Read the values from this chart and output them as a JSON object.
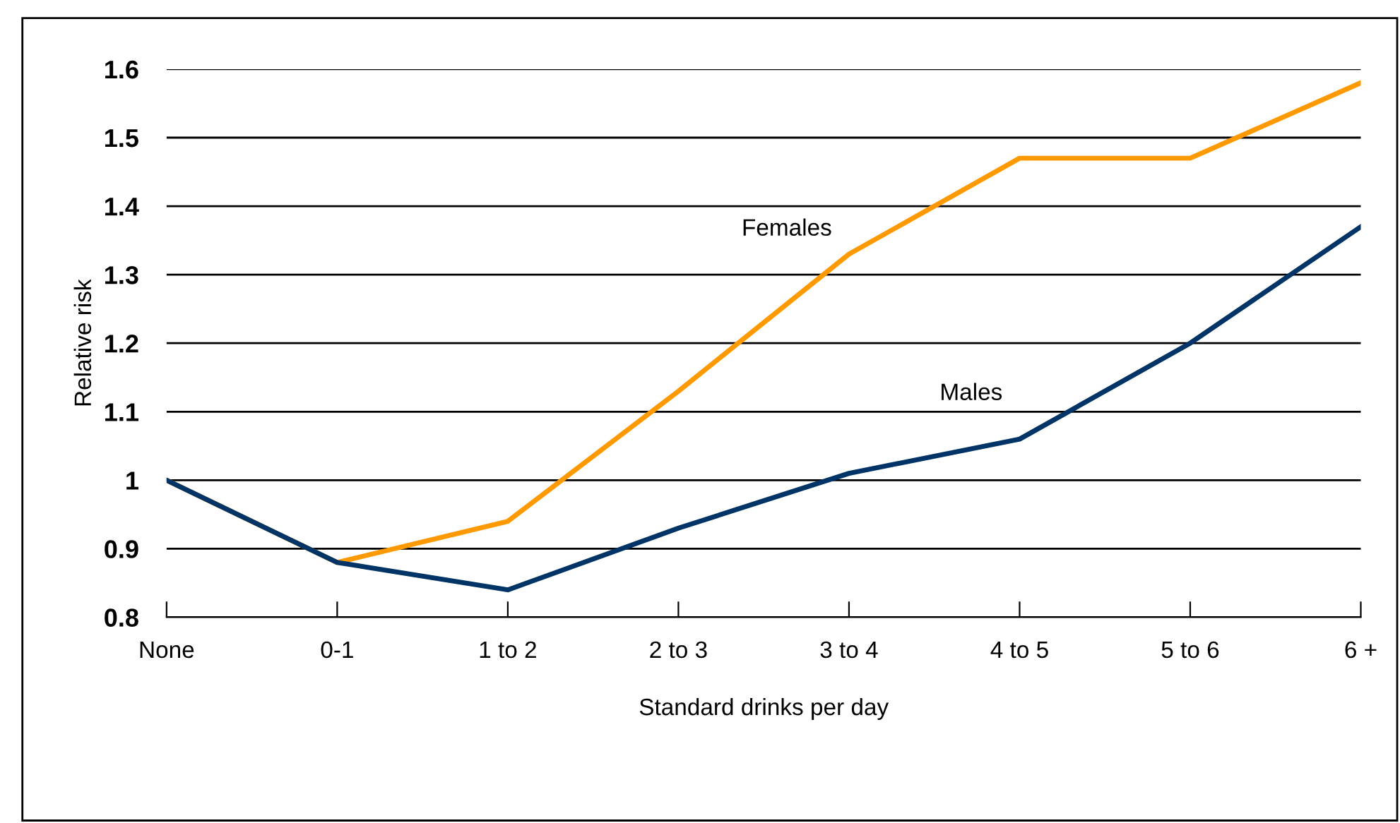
{
  "chart_data": {
    "type": "line",
    "xlabel": "Standard drinks per day",
    "ylabel": "Relative risk",
    "categories": [
      "None",
      "0-1",
      "1 to 2",
      "2 to 3",
      "3 to 4",
      "4 to 5",
      "5 to 6",
      "6 +"
    ],
    "series": [
      {
        "name": "Females",
        "color": "#ff9900",
        "values": [
          1.0,
          0.88,
          0.94,
          1.13,
          1.33,
          1.47,
          1.47,
          1.58
        ]
      },
      {
        "name": "Males",
        "color": "#003366",
        "values": [
          1.0,
          0.88,
          0.84,
          0.93,
          1.01,
          1.06,
          1.2,
          1.37
        ]
      }
    ],
    "ylim": [
      0.8,
      1.6
    ],
    "yticks": [
      {
        "value": 0.8,
        "label": "0.8"
      },
      {
        "value": 0.9,
        "label": "0.9"
      },
      {
        "value": 1.0,
        "label": "1"
      },
      {
        "value": 1.1,
        "label": "1.1"
      },
      {
        "value": 1.2,
        "label": "1.2"
      },
      {
        "value": 1.3,
        "label": "1.3"
      },
      {
        "value": 1.4,
        "label": "1.4"
      },
      {
        "value": 1.5,
        "label": "1.5"
      },
      {
        "value": 1.6,
        "label": "1.6"
      }
    ],
    "grid": "y",
    "legend": false,
    "marker": "none",
    "line_style": "solid"
  }
}
